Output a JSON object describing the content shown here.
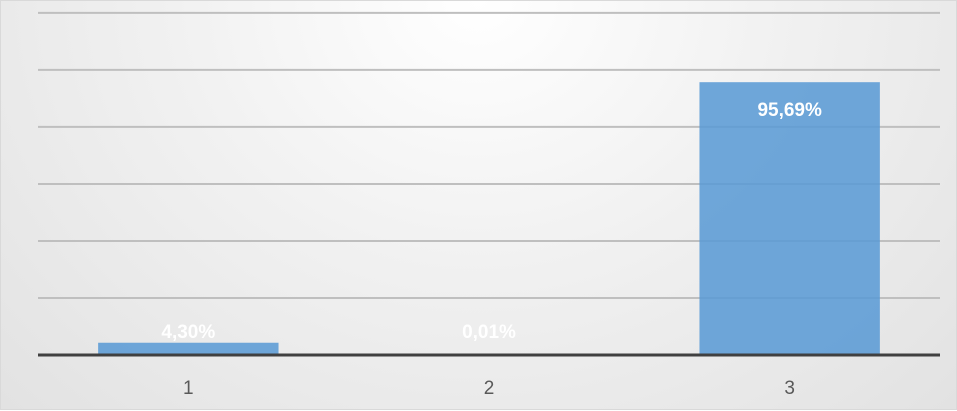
{
  "chart_data": {
    "type": "bar",
    "categories": [
      "1",
      "2",
      "3"
    ],
    "values": [
      4.3,
      0.01,
      95.69
    ],
    "data_labels": [
      "4,30%",
      "0,01%",
      "95,69%"
    ],
    "ylim": [
      0,
      120
    ],
    "grid": true,
    "legend": "none",
    "colors": {
      "bar": "#5b9bd5",
      "grid": "#bfbfbf",
      "axis": "#404040",
      "label": "#ffffff"
    }
  }
}
